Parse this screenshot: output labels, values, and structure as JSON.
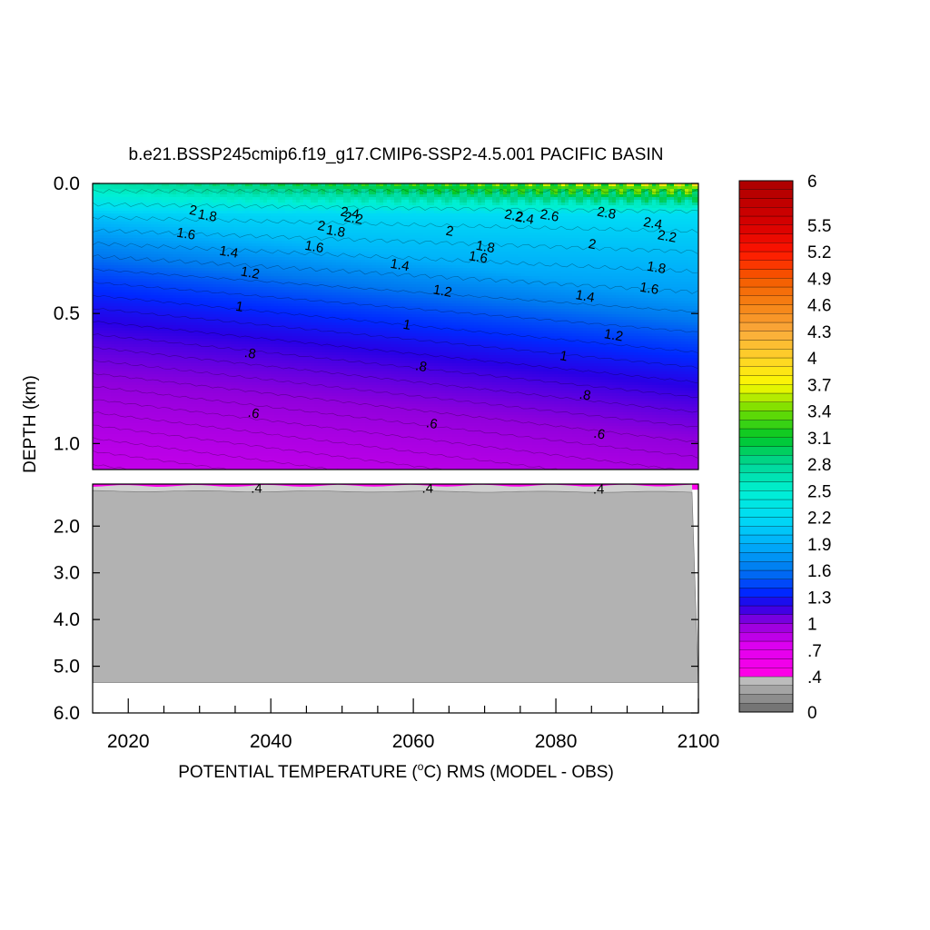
{
  "chart_data": {
    "type": "heatmap",
    "title": "b.e21.BSSP245cmip6.f19_g17.CMIP6-SSP2-4.5.001 PACIFIC BASIN",
    "xlabel_pre": "POTENTIAL TEMPERATURE (",
    "xlabel_sup": "o",
    "xlabel_post": "C) RMS (MODEL - OBS)",
    "ylabel": "DEPTH (km)",
    "xlim": [
      2015,
      2100
    ],
    "x_ticks": [
      2020,
      2040,
      2060,
      2080,
      2100
    ],
    "upper_panel": {
      "depth_range": [
        0.0,
        1.1
      ],
      "y_ticks": [
        {
          "v": 0.0,
          "label": "0.0"
        },
        {
          "v": 0.5,
          "label": "0.5"
        },
        {
          "v": 1.0,
          "label": "1.0"
        }
      ]
    },
    "lower_panel": {
      "depth_range": [
        1.1,
        6.0
      ],
      "y_ticks": [
        {
          "v": 2.0,
          "label": "2.0"
        },
        {
          "v": 3.0,
          "label": "3.0"
        },
        {
          "v": 4.0,
          "label": "4.0"
        },
        {
          "v": 5.0,
          "label": "5.0"
        },
        {
          "v": 6.0,
          "label": "6.0"
        }
      ],
      "bottom_depth": 5.35
    },
    "colorbar": {
      "range": [
        0,
        6
      ],
      "labels": [
        {
          "v": 6,
          "label": "6"
        },
        {
          "v": 5.5,
          "label": "5.5"
        },
        {
          "v": 5.2,
          "label": "5.2"
        },
        {
          "v": 4.9,
          "label": "4.9"
        },
        {
          "v": 4.6,
          "label": "4.6"
        },
        {
          "v": 4.3,
          "label": "4.3"
        },
        {
          "v": 4.0,
          "label": "4"
        },
        {
          "v": 3.7,
          "label": "3.7"
        },
        {
          "v": 3.4,
          "label": "3.4"
        },
        {
          "v": 3.1,
          "label": "3.1"
        },
        {
          "v": 2.8,
          "label": "2.8"
        },
        {
          "v": 2.5,
          "label": "2.5"
        },
        {
          "v": 2.2,
          "label": "2.2"
        },
        {
          "v": 1.9,
          "label": "1.9"
        },
        {
          "v": 1.6,
          "label": "1.6"
        },
        {
          "v": 1.3,
          "label": "1.3"
        },
        {
          "v": 1.0,
          "label": "1"
        },
        {
          "v": 0.7,
          "label": ".7"
        },
        {
          "v": 0.4,
          "label": ".4"
        },
        {
          "v": 0.0,
          "label": "0"
        }
      ]
    },
    "contour_labels": [
      {
        "x": 2029,
        "d": 0.12,
        "label": "2"
      },
      {
        "x": 2031,
        "d": 0.14,
        "label": "1.8"
      },
      {
        "x": 2028,
        "d": 0.21,
        "label": "1.6"
      },
      {
        "x": 2034,
        "d": 0.28,
        "label": "1.4"
      },
      {
        "x": 2037,
        "d": 0.36,
        "label": "1.2"
      },
      {
        "x": 2035.5,
        "d": 0.49,
        "label": "1"
      },
      {
        "x": 2037,
        "d": 0.67,
        "label": ".8"
      },
      {
        "x": 2037.5,
        "d": 0.9,
        "label": ".6"
      },
      {
        "x": 2047,
        "d": 0.18,
        "label": "2"
      },
      {
        "x": 2049,
        "d": 0.2,
        "label": "1.8"
      },
      {
        "x": 2046,
        "d": 0.26,
        "label": "1.6"
      },
      {
        "x": 2051,
        "d": 0.13,
        "label": "2.4"
      },
      {
        "x": 2051.5,
        "d": 0.15,
        "label": "2.2"
      },
      {
        "x": 2058,
        "d": 0.33,
        "label": "1.4"
      },
      {
        "x": 2064,
        "d": 0.43,
        "label": "1.2"
      },
      {
        "x": 2059,
        "d": 0.56,
        "label": "1"
      },
      {
        "x": 2061,
        "d": 0.72,
        "label": ".8"
      },
      {
        "x": 2062.5,
        "d": 0.94,
        "label": ".6"
      },
      {
        "x": 2065,
        "d": 0.2,
        "label": "2"
      },
      {
        "x": 2070,
        "d": 0.26,
        "label": "1.8"
      },
      {
        "x": 2069,
        "d": 0.3,
        "label": "1.6"
      },
      {
        "x": 2074,
        "d": 0.14,
        "label": "2.2"
      },
      {
        "x": 2075.5,
        "d": 0.15,
        "label": "2.4"
      },
      {
        "x": 2079,
        "d": 0.14,
        "label": "2.6"
      },
      {
        "x": 2087,
        "d": 0.13,
        "label": "2.8"
      },
      {
        "x": 2085,
        "d": 0.25,
        "label": "2"
      },
      {
        "x": 2084,
        "d": 0.45,
        "label": "1.4"
      },
      {
        "x": 2088,
        "d": 0.6,
        "label": "1.2"
      },
      {
        "x": 2081,
        "d": 0.68,
        "label": "1"
      },
      {
        "x": 2084,
        "d": 0.83,
        "label": ".8"
      },
      {
        "x": 2086,
        "d": 0.98,
        "label": ".6"
      },
      {
        "x": 2093.5,
        "d": 0.17,
        "label": "2.4"
      },
      {
        "x": 2095.5,
        "d": 0.22,
        "label": "2.2"
      },
      {
        "x": 2094,
        "d": 0.34,
        "label": "1.8"
      },
      {
        "x": 2093,
        "d": 0.42,
        "label": "1.6"
      }
    ],
    "lower_contour_labels": [
      {
        "x": 2038,
        "d": 1.15,
        "label": ".4"
      },
      {
        "x": 2062,
        "d": 1.15,
        "label": ".4"
      },
      {
        "x": 2086,
        "d": 1.17,
        "label": ".4"
      }
    ]
  }
}
